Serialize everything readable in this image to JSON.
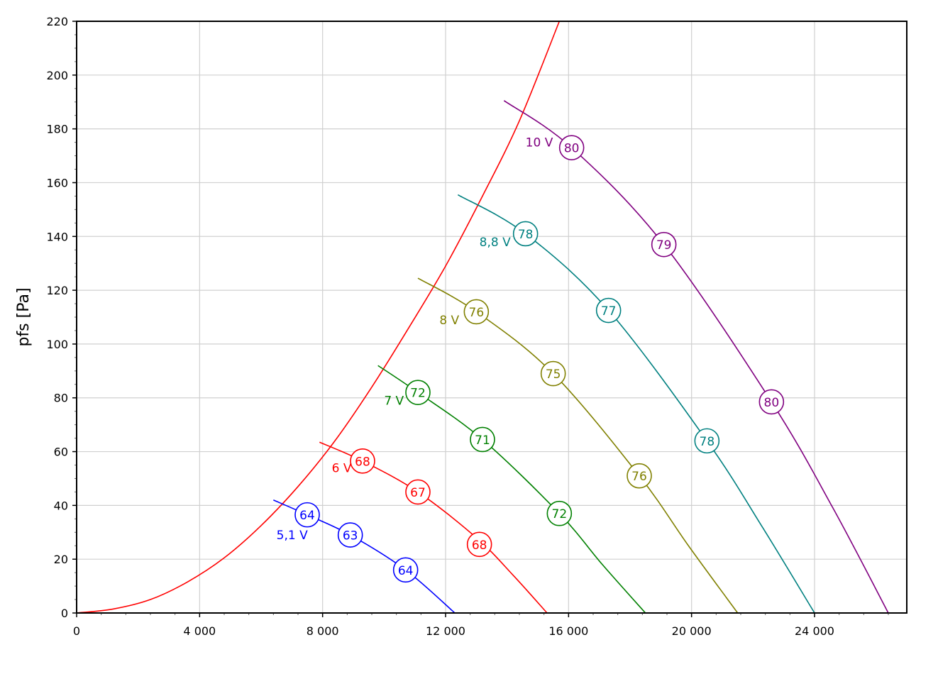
{
  "chart_data": {
    "type": "line",
    "title": "",
    "xlabel": "",
    "ylabel": "pfs [Pa]",
    "xlim": [
      0,
      27000
    ],
    "ylim": [
      0,
      220
    ],
    "x_ticks": [
      0,
      4000,
      8000,
      12000,
      16000,
      20000,
      24000
    ],
    "x_tick_labels": [
      "0",
      "4 000",
      "8 000",
      "12 000",
      "16 000",
      "20 000",
      "24 000"
    ],
    "y_ticks": [
      0,
      20,
      40,
      60,
      80,
      100,
      120,
      140,
      160,
      180,
      200,
      220
    ],
    "y_tick_labels": [
      "0",
      "20",
      "40",
      "60",
      "80",
      "100",
      "120",
      "140",
      "160",
      "180",
      "200",
      "220"
    ],
    "grid": true,
    "system_curve": {
      "color": "#ff0000",
      "points": [
        [
          0,
          0
        ],
        [
          1200,
          1.5
        ],
        [
          2400,
          5
        ],
        [
          3600,
          11.5
        ],
        [
          4800,
          20.5
        ],
        [
          6000,
          32.5
        ],
        [
          7200,
          47
        ],
        [
          8400,
          64
        ],
        [
          9600,
          84
        ],
        [
          10800,
          106
        ],
        [
          12000,
          129
        ],
        [
          13200,
          155
        ],
        [
          14400,
          183
        ],
        [
          15700,
          220
        ]
      ]
    },
    "series": [
      {
        "name": "5,1 V",
        "color": "#0000ff",
        "points": [
          [
            6400,
            42
          ],
          [
            7500,
            36.5
          ],
          [
            8900,
            29
          ],
          [
            10700,
            16
          ],
          [
            12300,
            0
          ]
        ],
        "markers": [
          {
            "x": 7500,
            "y": 36.5,
            "label": "64"
          },
          {
            "x": 8900,
            "y": 29,
            "label": "63"
          },
          {
            "x": 10700,
            "y": 16,
            "label": "64"
          }
        ],
        "label_pos": {
          "x": 6500,
          "y": 29
        }
      },
      {
        "name": "6 V",
        "color": "#ff0000",
        "points": [
          [
            7900,
            63.5
          ],
          [
            9300,
            56.5
          ],
          [
            11100,
            45
          ],
          [
            13000,
            28
          ],
          [
            14200,
            14
          ],
          [
            15300,
            0
          ]
        ],
        "markers": [
          {
            "x": 9300,
            "y": 56.5,
            "label": "68"
          },
          {
            "x": 11100,
            "y": 45,
            "label": "67"
          },
          {
            "x": 13100,
            "y": 25.5,
            "label": "68"
          }
        ],
        "label_pos": {
          "x": 8300,
          "y": 54
        }
      },
      {
        "name": "7 V",
        "color": "#008000",
        "points": [
          [
            9800,
            92
          ],
          [
            11100,
            82
          ],
          [
            13200,
            64.5
          ],
          [
            15700,
            37
          ],
          [
            17100,
            18
          ],
          [
            18500,
            0
          ]
        ],
        "markers": [
          {
            "x": 11100,
            "y": 82,
            "label": "72"
          },
          {
            "x": 13200,
            "y": 64.5,
            "label": "71"
          },
          {
            "x": 15700,
            "y": 37,
            "label": "72"
          }
        ],
        "label_pos": {
          "x": 10000,
          "y": 79
        }
      },
      {
        "name": "8 V",
        "color": "#808000",
        "points": [
          [
            11100,
            124.5
          ],
          [
            13000,
            112
          ],
          [
            15500,
            89
          ],
          [
            18300,
            51
          ],
          [
            19900,
            25
          ],
          [
            21500,
            0
          ]
        ],
        "markers": [
          {
            "x": 13000,
            "y": 112,
            "label": "76"
          },
          {
            "x": 15500,
            "y": 89,
            "label": "75"
          },
          {
            "x": 18300,
            "y": 51,
            "label": "76"
          }
        ],
        "label_pos": {
          "x": 11800,
          "y": 109
        }
      },
      {
        "name": "8,8 V",
        "color": "#008080",
        "points": [
          [
            12400,
            155.5
          ],
          [
            14600,
            141
          ],
          [
            17300,
            112.5
          ],
          [
            20500,
            64
          ],
          [
            22300,
            32
          ],
          [
            24000,
            0
          ]
        ],
        "markers": [
          {
            "x": 14600,
            "y": 141,
            "label": "78"
          },
          {
            "x": 17300,
            "y": 112.5,
            "label": "77"
          },
          {
            "x": 20500,
            "y": 64,
            "label": "78"
          }
        ],
        "label_pos": {
          "x": 13100,
          "y": 138
        }
      },
      {
        "name": "10 V",
        "color": "#800080",
        "points": [
          [
            13900,
            190.5
          ],
          [
            16100,
            173
          ],
          [
            19100,
            137
          ],
          [
            22600,
            78.5
          ],
          [
            24600,
            39
          ],
          [
            26400,
            0
          ]
        ],
        "markers": [
          {
            "x": 16100,
            "y": 173,
            "label": "80"
          },
          {
            "x": 19100,
            "y": 137,
            "label": "79"
          },
          {
            "x": 22600,
            "y": 78.5,
            "label": "80"
          }
        ],
        "label_pos": {
          "x": 14600,
          "y": 175
        }
      }
    ]
  }
}
